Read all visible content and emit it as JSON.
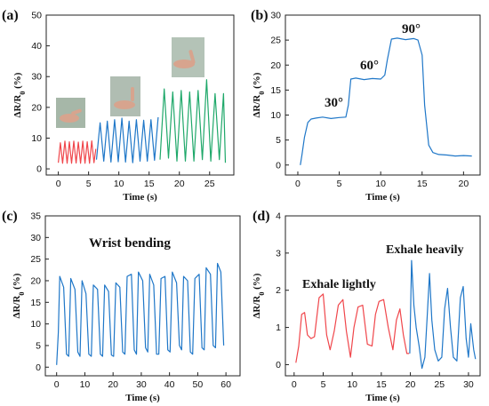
{
  "chart_data": [
    {
      "panel": "(a)",
      "type": "line",
      "xlabel": "Time (s)",
      "ylabel": "ΔR/R",
      "ylabel_sub": "0",
      "ylabel_unit": " (%)",
      "xlim": [
        -2,
        29
      ],
      "ylim": [
        -2,
        50
      ],
      "xticks": [
        0,
        5,
        10,
        15,
        20,
        25
      ],
      "yticks": [
        0,
        10,
        20,
        30,
        40,
        50
      ],
      "photos": [
        "wrist-bend-small-photo",
        "wrist-bend-medium-photo",
        "wrist-bend-large-photo"
      ],
      "series": [
        {
          "color": "#f0464b",
          "x": [
            0,
            0.34,
            0.71,
            1.08,
            1.45,
            1.82,
            2.19,
            2.56,
            2.93,
            3.3,
            3.67,
            4.04,
            4.41,
            4.78,
            5.15,
            5.52,
            5.89,
            6.2
          ],
          "y": [
            2,
            8.5,
            1.8,
            9.0,
            1.8,
            8.8,
            1.8,
            9.0,
            1.9,
            8.7,
            1.8,
            9.0,
            1.8,
            8.8,
            1.8,
            9.1,
            2.0,
            6.5
          ]
        },
        {
          "color": "#1f77c8",
          "x": [
            6.3,
            6.9,
            7.5,
            8.1,
            8.7,
            9.3,
            9.9,
            10.5,
            11.1,
            11.7,
            12.3,
            12.9,
            13.5,
            14.1,
            14.7,
            15.3,
            15.9,
            16.5
          ],
          "y": [
            3,
            15,
            2.5,
            15.5,
            2.2,
            16.0,
            2.3,
            16.5,
            2.2,
            15.5,
            2.0,
            16.0,
            2.5,
            15.8,
            2.5,
            16.0,
            2.8,
            16.8
          ]
        },
        {
          "color": "#1fa86a",
          "x": [
            16.8,
            17.5,
            18.2,
            18.9,
            19.6,
            20.3,
            21.0,
            21.7,
            22.4,
            23.1,
            23.8,
            24.5,
            25.2,
            25.9,
            26.6,
            27.3,
            27.6
          ],
          "y": [
            3,
            26,
            3.5,
            25,
            2.5,
            25.5,
            2.5,
            25,
            2.5,
            25.5,
            3,
            29,
            2.5,
            24.5,
            3,
            24.5,
            2
          ]
        }
      ]
    },
    {
      "panel": "(b)",
      "type": "line",
      "xlabel": "Time (s)",
      "ylabel": "ΔR/R",
      "ylabel_sub": "0",
      "ylabel_unit": " (%)",
      "xlim": [
        -1.5,
        22
      ],
      "ylim": [
        -2,
        30
      ],
      "xticks": [
        0,
        5,
        10,
        15,
        20
      ],
      "yticks": [
        0,
        5,
        10,
        15,
        20,
        25,
        30
      ],
      "annotations": [
        "30°",
        "60°",
        "90°"
      ],
      "series": [
        {
          "color": "#1f77c8",
          "x": [
            0.3,
            0.5,
            0.8,
            1.2,
            1.6,
            2.2,
            3.0,
            4.0,
            5.0,
            5.8,
            6.1,
            6.4,
            7.0,
            8.0,
            9.0,
            10.0,
            10.5,
            10.8,
            11.3,
            12.0,
            13.0,
            14.0,
            14.5,
            15.0,
            15.3,
            15.8,
            16.3,
            17.0,
            18.0,
            19.0,
            20.0,
            21.0
          ],
          "y": [
            0,
            2,
            5.5,
            8.5,
            9.2,
            9.4,
            9.6,
            9.3,
            9.5,
            9.6,
            12,
            17.2,
            17.4,
            17.1,
            17.3,
            17.2,
            18,
            21,
            25.2,
            25.4,
            25.1,
            25.3,
            25.0,
            22,
            12,
            4,
            2.5,
            2.1,
            2.0,
            1.8,
            1.9,
            1.8
          ]
        }
      ]
    },
    {
      "panel": "(c)",
      "type": "line",
      "xlabel": "Time (s)",
      "ylabel": "ΔR/R",
      "ylabel_sub": "0",
      "ylabel_unit": " (%)",
      "xlim": [
        -4,
        65
      ],
      "ylim": [
        -2,
        35
      ],
      "xticks": [
        0,
        10,
        20,
        30,
        40,
        50,
        60
      ],
      "yticks": [
        0,
        5,
        10,
        15,
        20,
        25,
        30,
        35
      ],
      "annotations": [
        "Wrist bending"
      ],
      "series": [
        {
          "color": "#1f77c8",
          "x": [
            0,
            0.6,
            1.1,
            2.5,
            3.5,
            4.3,
            5.0,
            6.5,
            7.5,
            8.3,
            9.0,
            10.4,
            11.4,
            12.3,
            13.0,
            14.5,
            15.5,
            16.3,
            17.0,
            18.4,
            19.4,
            20.2,
            21.0,
            22.4,
            23.4,
            24.2,
            25.0,
            26.5,
            27.5,
            28.3,
            29.0,
            30.5,
            31.5,
            32.3,
            33.0,
            34.4,
            35.4,
            36.2,
            37.0,
            38.4,
            39.4,
            40.2,
            41.0,
            42.5,
            43.5,
            44.3,
            45.0,
            46.4,
            47.4,
            48.2,
            49.0,
            50.5,
            51.5,
            52.3,
            53.0,
            54.5,
            55.5,
            56.3,
            57.0,
            58.2,
            59.2
          ],
          "y": [
            0.5,
            8,
            21,
            18.5,
            3,
            2.5,
            20.5,
            18,
            3.5,
            2.5,
            20,
            17,
            3,
            2.5,
            19,
            18,
            3,
            2.5,
            19,
            17.5,
            2.8,
            2.5,
            19.5,
            18.5,
            3.5,
            3,
            21,
            21.5,
            4,
            3,
            22,
            20,
            4.5,
            3.5,
            21.5,
            19,
            3,
            3,
            20.5,
            21,
            4,
            3.5,
            22,
            19.5,
            5,
            4,
            21,
            20,
            3.5,
            3,
            20.5,
            21.5,
            4.5,
            4,
            23,
            21.5,
            5,
            4.5,
            24,
            22,
            5
          ]
        }
      ]
    },
    {
      "panel": "(d)",
      "type": "line",
      "xlabel": "Time (s)",
      "ylabel": "ΔR/R",
      "ylabel_sub": "0",
      "ylabel_unit": " (%)",
      "xlim": [
        -1.5,
        32
      ],
      "ylim": [
        -0.3,
        4
      ],
      "xticks": [
        0,
        5,
        10,
        15,
        20,
        25,
        30
      ],
      "yticks": [
        0,
        1,
        2,
        3,
        4
      ],
      "annotations": [
        "Exhale lightly",
        "Exhale heavily"
      ],
      "series": [
        {
          "color": "#f0464b",
          "x": [
            0.3,
            0.8,
            1.3,
            1.8,
            2.3,
            2.9,
            3.5,
            4.3,
            5.0,
            5.6,
            6.2,
            6.9,
            7.6,
            8.4,
            9.0,
            9.7,
            10.3,
            11.0,
            11.8,
            12.6,
            13.4,
            14.0,
            14.6,
            15.4,
            16.2,
            17.0,
            17.6,
            18.2,
            18.8,
            19.4,
            19.8
          ],
          "y": [
            0.05,
            0.5,
            1.35,
            1.4,
            0.8,
            0.7,
            0.75,
            1.8,
            1.9,
            0.8,
            0.4,
            0.9,
            1.6,
            1.75,
            0.9,
            0.2,
            1.0,
            1.55,
            1.6,
            0.55,
            0.5,
            1.35,
            1.7,
            1.75,
            1.0,
            0.4,
            1.2,
            1.5,
            0.8,
            0.3,
            0.3
          ]
        },
        {
          "color": "#1f77c8",
          "x": [
            19.9,
            20.2,
            20.6,
            21.0,
            21.5,
            22.0,
            22.5,
            22.9,
            23.3,
            23.7,
            24.2,
            24.8,
            25.4,
            25.9,
            26.4,
            26.9,
            27.4,
            28.0,
            28.6,
            29.1,
            29.6,
            30.0,
            30.4,
            30.9,
            31.2
          ],
          "y": [
            0.3,
            2.8,
            1.6,
            1.0,
            0.5,
            -0.1,
            0.2,
            1.3,
            2.45,
            1.2,
            0.4,
            0.1,
            0.2,
            1.5,
            2.05,
            1.0,
            0.2,
            0.1,
            1.8,
            2.1,
            0.7,
            0.2,
            1.1,
            0.4,
            0.15
          ]
        }
      ]
    }
  ]
}
